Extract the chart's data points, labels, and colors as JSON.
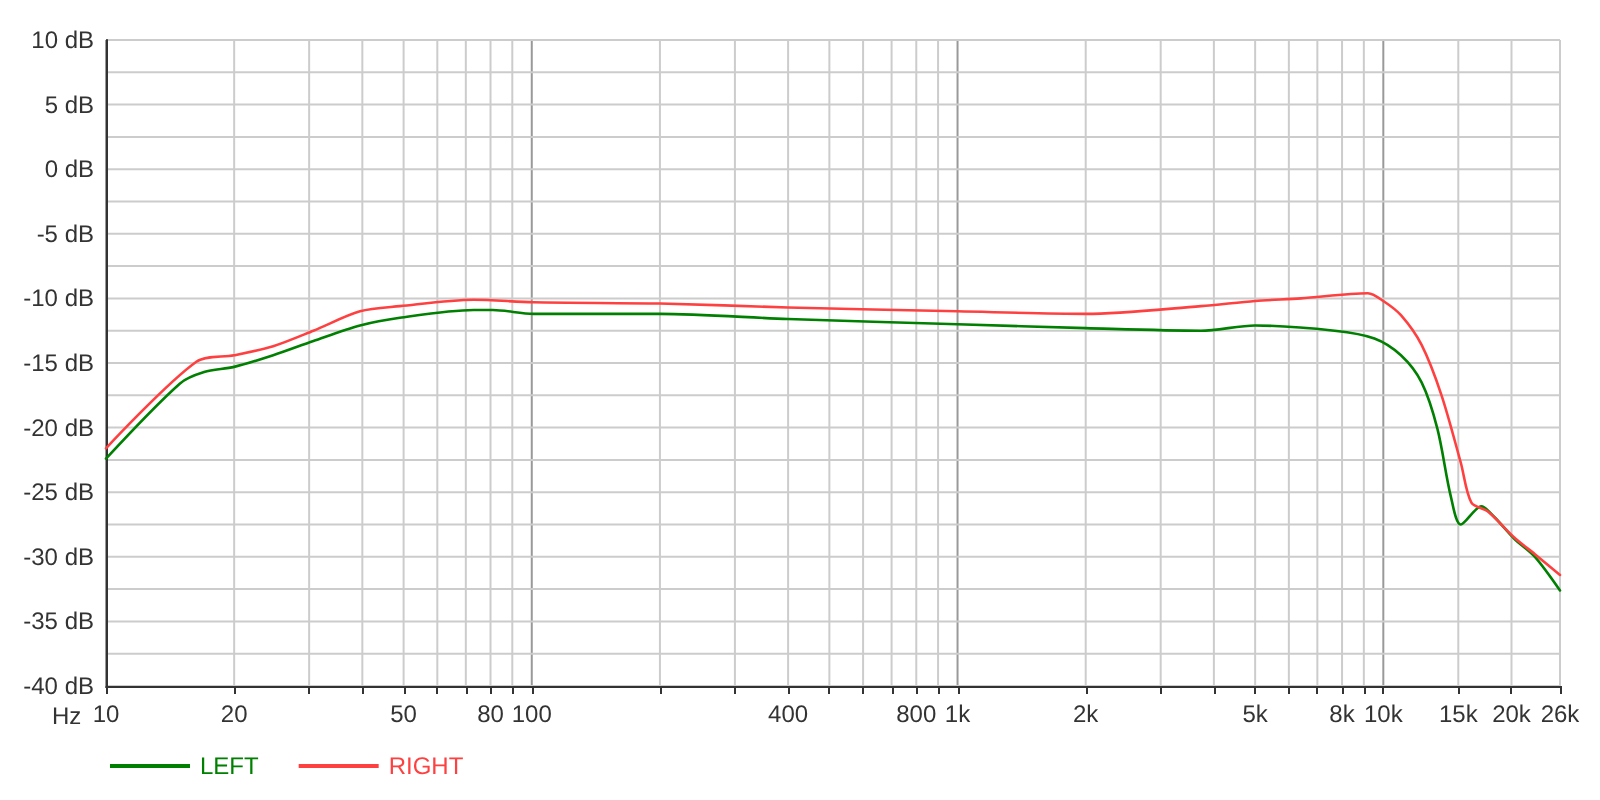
{
  "chart_data": {
    "type": "line",
    "xlabel": "Hz",
    "log": "x",
    "grid": true,
    "legend": "bottom left",
    "marker": "none",
    "line_style": "solid",
    "xlim": [
      10,
      26000
    ],
    "xticks": [
      10,
      20,
      {
        "value": 30,
        "label": null
      },
      {
        "value": 40,
        "label": null
      },
      50,
      {
        "value": 60,
        "label": null
      },
      {
        "value": 70,
        "label": null
      },
      80,
      {
        "value": 90,
        "label": null
      },
      100,
      {
        "value": 200,
        "label": null
      },
      {
        "value": 300,
        "label": null
      },
      400,
      {
        "value": 500,
        "label": null
      },
      {
        "value": 600,
        "label": null
      },
      {
        "value": 700,
        "label": null
      },
      800,
      {
        "value": 900,
        "label": null
      },
      {
        "value": 1000,
        "label": "1k"
      },
      {
        "value": 2000,
        "label": "2k"
      },
      {
        "value": 3000,
        "label": null
      },
      {
        "value": 4000,
        "label": null
      },
      {
        "value": 5000,
        "label": "5k"
      },
      {
        "value": 6000,
        "label": null
      },
      {
        "value": 7000,
        "label": null
      },
      {
        "value": 8000,
        "label": "8k"
      },
      {
        "value": 9000,
        "label": null
      },
      {
        "value": 10000,
        "label": "10k"
      },
      {
        "value": 15000,
        "label": "15k"
      },
      {
        "value": 20000,
        "label": "20k"
      },
      {
        "value": 26000,
        "label": "26k"
      }
    ],
    "ylim": [
      -40,
      10
    ],
    "yticks": [
      {
        "value": -40,
        "label": "-40 dB"
      },
      {
        "value": -37.5,
        "label": null
      },
      {
        "value": -35,
        "label": "-35 dB"
      },
      {
        "value": -32.5,
        "label": null
      },
      {
        "value": -30,
        "label": "-30 dB"
      },
      {
        "value": -27.5,
        "label": null
      },
      {
        "value": -25,
        "label": "-25 dB"
      },
      {
        "value": -22.5,
        "label": null
      },
      {
        "value": -20,
        "label": "-20 dB"
      },
      {
        "value": -17.5,
        "label": null
      },
      {
        "value": -15,
        "label": "-15 dB"
      },
      {
        "value": -12.5,
        "label": null
      },
      {
        "value": -10,
        "label": "-10 dB"
      },
      {
        "value": -7.5,
        "label": null
      },
      {
        "value": -5,
        "label": "-5 dB"
      },
      {
        "value": -2.5,
        "label": null
      },
      {
        "value": 0,
        "label": "0 dB"
      },
      {
        "value": 2.5,
        "label": null
      },
      {
        "value": 5,
        "label": "5 dB"
      },
      {
        "value": 7.5,
        "label": null
      },
      {
        "value": 10,
        "label": "10 dB"
      }
    ],
    "series": [
      {
        "name": "LEFT",
        "color": "#008000",
        "x": [
          10,
          14.9,
          17,
          20,
          24.7,
          30.7,
          39.5,
          49,
          73,
          81,
          101,
          200,
          400,
          1000,
          2000,
          3730,
          5000,
          7680,
          9530,
          11000,
          12300,
          13400,
          14400,
          15200,
          17000,
          18200,
          20300,
          22700,
          26000
        ],
        "values": [
          -22.4,
          -16.6,
          -15.7,
          -15.3,
          -14.4,
          -13.3,
          -12.1,
          -11.5,
          -10.9,
          -10.9,
          -11.2,
          -11.2,
          -11.6,
          -12,
          -12.3,
          -12.5,
          -12.1,
          -12.5,
          -13.1,
          -14.4,
          -16.5,
          -20.1,
          -25.3,
          -27.5,
          -26.1,
          -26.9,
          -28.6,
          -30,
          -32.6
        ]
      },
      {
        "name": "RIGHT",
        "color": "#ff4040",
        "x": [
          10,
          16.3,
          20,
          24.7,
          30.7,
          39.5,
          49,
          73,
          101,
          200,
          400,
          1000,
          2000,
          3730,
          5000,
          6400,
          9200,
          10000,
          11000,
          12300,
          13700,
          15200,
          16100,
          17600,
          20300,
          22700,
          26000
        ],
        "values": [
          -21.6,
          -14.9,
          -14.4,
          -13.7,
          -12.5,
          -11,
          -10.6,
          -10.1,
          -10.3,
          -10.4,
          -10.7,
          -11,
          -11.2,
          -10.6,
          -10.2,
          -10,
          -9.6,
          -10.2,
          -11.3,
          -13.6,
          -17.5,
          -22.7,
          -25.8,
          -26.5,
          -28.5,
          -29.8,
          -31.4
        ]
      }
    ]
  }
}
